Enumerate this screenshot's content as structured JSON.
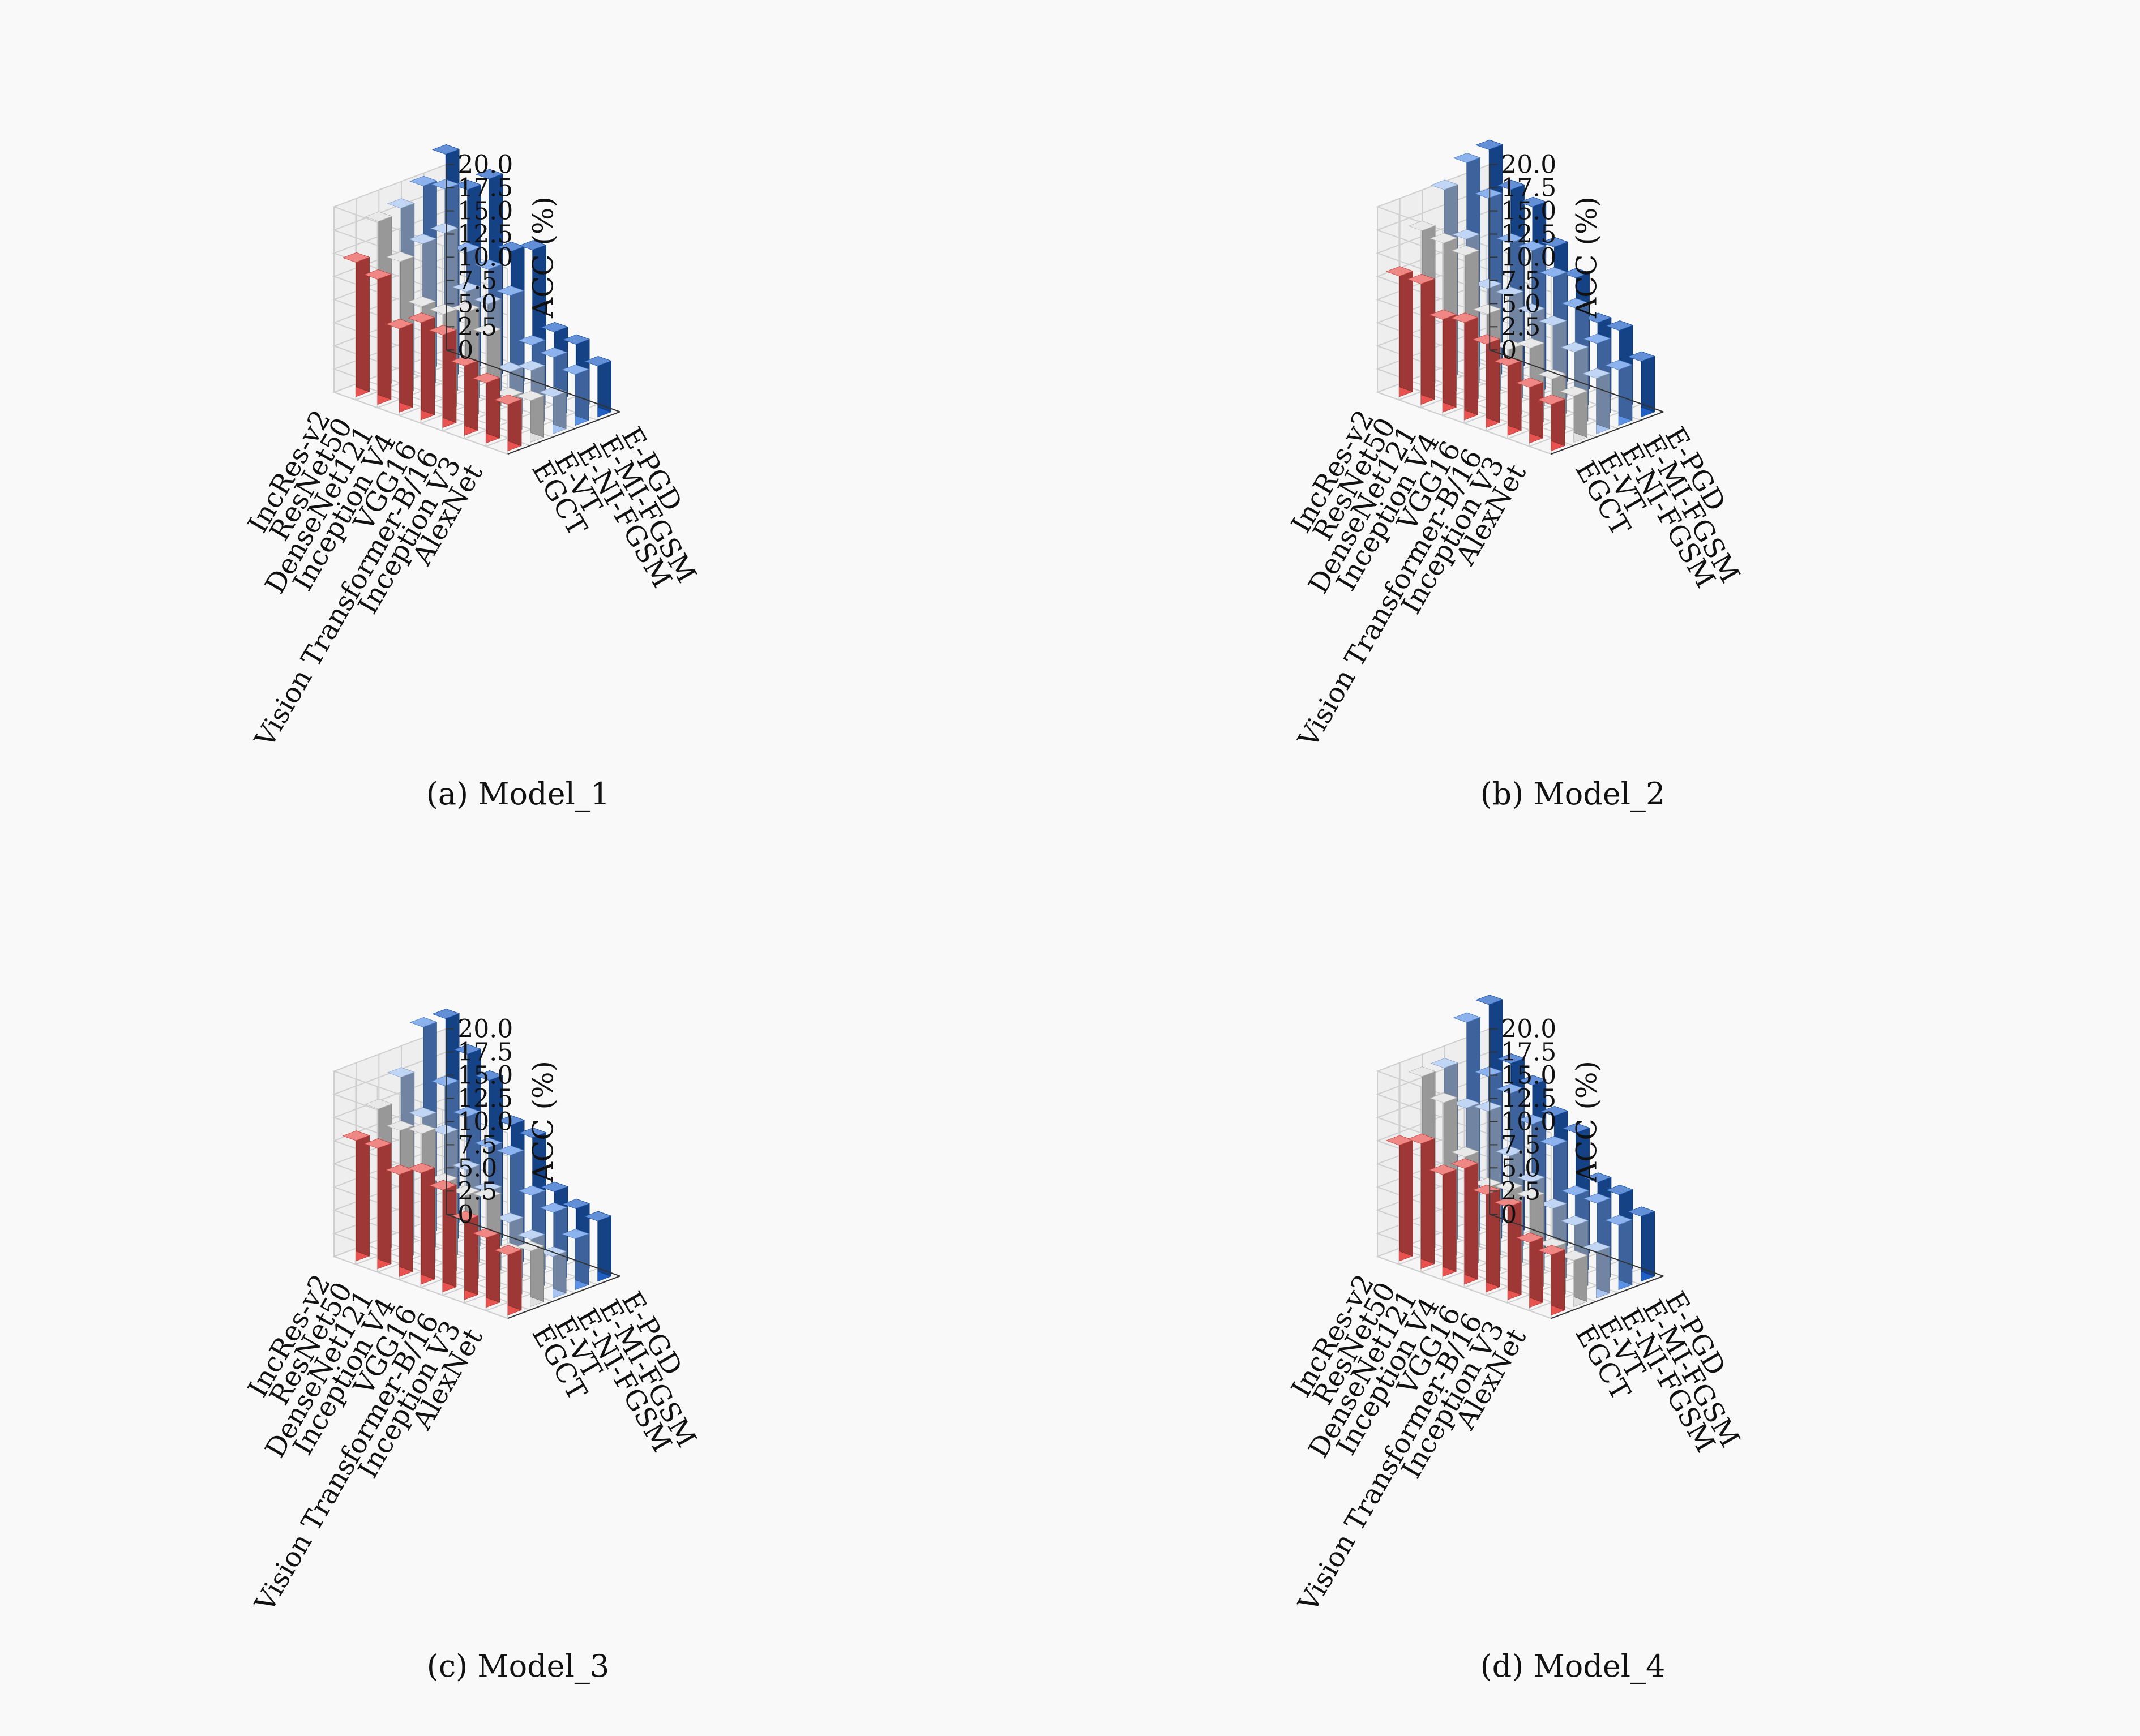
{
  "figure": {
    "z_axis_label": "ACC (%)",
    "z_ticks": [
      "0",
      "2.5",
      "5.0",
      "7.5",
      "10.0",
      "12.5",
      "15.0",
      "17.5",
      "20.0"
    ],
    "models": [
      "IncRes-v2",
      "ResNet50",
      "DenseNet121",
      "Inception V4",
      "VGG16",
      "Vision Transformer-B/16",
      "Inception V3",
      "AlexNet"
    ],
    "methods": [
      "EGCT",
      "E-VT",
      "E-NI-FGSM",
      "E-MI-FGSM",
      "E-PGD"
    ],
    "method_colors": [
      "#e8534f",
      "#e0e0e0",
      "#a6c4ef",
      "#5b92e5",
      "#1f5fc4"
    ]
  },
  "chart_data": [
    {
      "type": "bar3d",
      "caption": "(a) Model_1",
      "zlabel": "ACC (%)",
      "zlim": [
        0,
        20
      ],
      "grid": true,
      "categories": [
        "IncRes-v2",
        "ResNet50",
        "DenseNet121",
        "Inception V4",
        "VGG16",
        "Vision Transformer-B/16",
        "Inception V3",
        "AlexNet"
      ],
      "series": [
        {
          "name": "EGCT",
          "values": [
            14.5,
            13.5,
            9.0,
            10.5,
            10.0,
            7.5,
            6.5,
            5.0
          ]
        },
        {
          "name": "E-VT",
          "values": [
            18.0,
            14.5,
            10.5,
            10.5,
            11.5,
            10.0,
            4.0,
            4.5
          ]
        },
        {
          "name": "E-NI-FGSM",
          "values": [
            18.5,
            15.5,
            17.5,
            12.0,
            11.5,
            5.0,
            6.0,
            4.0
          ]
        },
        {
          "name": "E-MI-FGSM",
          "values": [
            20.0,
            20.5,
            14.5,
            13.5,
            11.5,
            7.0,
            6.5,
            5.5
          ]
        },
        {
          "name": "E-PGD",
          "values": [
            22.5,
            19.5,
            21.5,
            14.5,
            15.5,
            7.5,
            7.0,
            5.5
          ]
        }
      ]
    },
    {
      "type": "bar3d",
      "caption": "(b) Model_2",
      "zlabel": "ACC (%)",
      "zlim": [
        0,
        20
      ],
      "grid": true,
      "categories": [
        "IncRes-v2",
        "ResNet50",
        "DenseNet121",
        "Inception V4",
        "VGG16",
        "Vision Transformer-B/16",
        "Inception V3",
        "AlexNet"
      ],
      "series": [
        {
          "name": "EGCT",
          "values": [
            13.0,
            13.0,
            10.0,
            10.5,
            9.0,
            7.5,
            6.0,
            5.0
          ]
        },
        {
          "name": "E-VT",
          "values": [
            17.0,
            16.5,
            16.0,
            10.5,
            7.5,
            8.5,
            6.0,
            5.0
          ]
        },
        {
          "name": "E-NI-FGSM",
          "values": [
            20.5,
            16.0,
            11.5,
            11.5,
            10.5,
            10.0,
            8.0,
            6.0
          ]
        },
        {
          "name": "E-MI-FGSM",
          "values": [
            22.5,
            19.5,
            15.5,
            15.5,
            13.5,
            11.0,
            8.0,
            6.0
          ]
        },
        {
          "name": "E-PGD",
          "values": [
            23.0,
            19.5,
            18.5,
            15.0,
            12.5,
            8.5,
            8.5,
            6.0
          ]
        }
      ]
    },
    {
      "type": "bar3d",
      "caption": "(c) Model_3",
      "zlabel": "ACC (%)",
      "zlim": [
        0,
        20
      ],
      "grid": true,
      "categories": [
        "IncRes-v2",
        "ResNet50",
        "DenseNet121",
        "Inception V4",
        "VGG16",
        "Vision Transformer-B/16",
        "Inception V3",
        "AlexNet"
      ],
      "series": [
        {
          "name": "EGCT",
          "values": [
            13.0,
            13.0,
            11.0,
            12.0,
            11.0,
            8.5,
            7.5,
            6.5
          ]
        },
        {
          "name": "E-VT",
          "values": [
            15.5,
            14.0,
            14.5,
            10.0,
            9.5,
            10.0,
            5.0,
            6.0
          ]
        },
        {
          "name": "E-NI-FGSM",
          "values": [
            18.0,
            14.5,
            13.5,
            10.5,
            9.0,
            6.5,
            5.5,
            4.5
          ]
        },
        {
          "name": "E-MI-FGSM",
          "values": [
            22.5,
            17.0,
            14.5,
            12.0,
            12.0,
            8.5,
            7.5,
            5.5
          ]
        },
        {
          "name": "E-PGD",
          "values": [
            22.5,
            19.5,
            17.5,
            13.5,
            13.0,
            8.0,
            7.0,
            6.5
          ]
        }
      ]
    },
    {
      "type": "bar3d",
      "caption": "(d) Model_4",
      "zlabel": "ACC (%)",
      "zlim": [
        0,
        20
      ],
      "grid": true,
      "categories": [
        "IncRes-v2",
        "ResNet50",
        "DenseNet121",
        "Inception V4",
        "VGG16",
        "Vision Transformer-B/16",
        "Inception V3",
        "AlexNet"
      ],
      "series": [
        {
          "name": "EGCT",
          "values": [
            12.5,
            13.5,
            11.0,
            12.5,
            10.5,
            10.0,
            7.0,
            6.5
          ]
        },
        {
          "name": "E-VT",
          "values": [
            19.0,
            17.0,
            12.0,
            9.5,
            10.0,
            10.0,
            5.5,
            5.0
          ]
        },
        {
          "name": "E-NI-FGSM",
          "values": [
            19.0,
            15.5,
            16.0,
            12.0,
            10.0,
            8.0,
            7.0,
            5.0
          ]
        },
        {
          "name": "E-MI-FGSM",
          "values": [
            23.0,
            18.0,
            17.0,
            14.5,
            13.0,
            8.5,
            8.5,
            7.0
          ]
        },
        {
          "name": "E-PGD",
          "values": [
            24.0,
            18.5,
            17.0,
            14.5,
            13.5,
            9.0,
            8.5,
            7.0
          ]
        }
      ]
    }
  ]
}
